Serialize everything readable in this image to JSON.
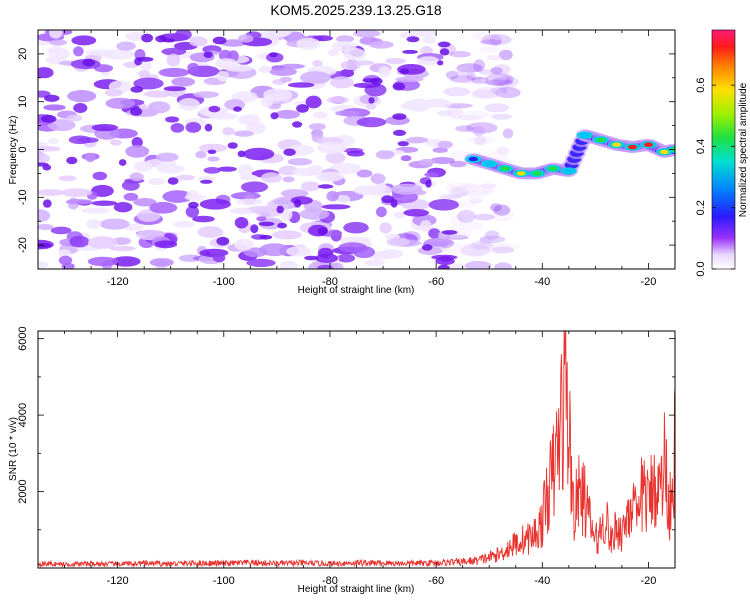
{
  "title": "KOM5.2025.239.13.25.G18",
  "colors": {
    "line": "#e8332f",
    "frame": "#000000",
    "spectrogram_base": "#8a2be2"
  },
  "chart_data": [
    {
      "type": "heatmap",
      "title": "KOM5.2025.239.13.25.G18",
      "xlabel": "Height of straight line (km)",
      "ylabel": "Frequency (Hz)",
      "xlim": [
        -135,
        -15
      ],
      "ylim": [
        -25,
        25
      ],
      "xticks": [
        -120,
        -100,
        -80,
        -60,
        -40,
        -20
      ],
      "xtick_labels": [
        "-120",
        "-100",
        "-80",
        "-60",
        "-40",
        "-20"
      ],
      "yticks": [
        -20,
        -10,
        0,
        10,
        20
      ],
      "ytick_labels": [
        "-20",
        "-10",
        "0",
        "10",
        "20"
      ],
      "noise_region_x": [
        -135,
        -50
      ],
      "signal_ridge": {
        "x": [
          -53,
          -50,
          -47,
          -44,
          -41,
          -38,
          -35,
          -32,
          -29,
          -26,
          -23,
          -20,
          -17,
          -15
        ],
        "frequency": [
          -2,
          -3,
          -4,
          -5,
          -5,
          -4,
          -4.5,
          3,
          2,
          1,
          0.5,
          1,
          -0.5,
          0
        ],
        "amplitude": [
          0.15,
          0.35,
          0.5,
          0.6,
          0.55,
          0.5,
          0.4,
          0.45,
          0.55,
          0.7,
          0.75,
          0.8,
          0.6,
          0.5
        ]
      },
      "colorbar": {
        "label": "Normalized spectral amplitude",
        "range": [
          0,
          0.78
        ],
        "ticks": [
          0.0,
          0.2,
          0.4,
          0.6
        ],
        "tick_labels": [
          "0.0",
          "0.2",
          "0.4",
          "0.6"
        ]
      }
    },
    {
      "type": "line",
      "xlabel": "Height of straight line (km)",
      "ylabel": "SNR (10 * v/v)",
      "xlim": [
        -135,
        -15
      ],
      "ylim": [
        0,
        6200
      ],
      "xticks": [
        -120,
        -100,
        -80,
        -60,
        -40,
        -20
      ],
      "xtick_labels": [
        "-120",
        "-100",
        "-80",
        "-60",
        "-40",
        "-20"
      ],
      "yticks": [
        2000,
        4000,
        6000
      ],
      "ytick_labels": [
        "2000",
        "4000",
        "6000"
      ],
      "series": [
        {
          "name": "SNR",
          "x": [
            -135,
            -130,
            -125,
            -120,
            -115,
            -110,
            -105,
            -100,
            -95,
            -90,
            -85,
            -80,
            -75,
            -70,
            -65,
            -60,
            -55,
            -52,
            -50,
            -48,
            -46,
            -44,
            -42,
            -41,
            -40,
            -39,
            -38,
            -37,
            -36,
            -35.5,
            -35,
            -34.5,
            -34,
            -33,
            -32,
            -31,
            -30,
            -29,
            -28,
            -27,
            -26,
            -25,
            -24,
            -23,
            -22,
            -21,
            -20,
            -19,
            -18,
            -17,
            -16,
            -15
          ],
          "y": [
            150,
            120,
            140,
            130,
            150,
            140,
            160,
            150,
            170,
            150,
            160,
            140,
            170,
            160,
            150,
            170,
            200,
            250,
            350,
            450,
            700,
            900,
            1000,
            1200,
            1500,
            2500,
            3000,
            4000,
            5500,
            6200,
            4500,
            3000,
            1800,
            2500,
            2200,
            1500,
            900,
            1200,
            1700,
            800,
            1400,
            1100,
            1800,
            2200,
            1300,
            2800,
            2000,
            3000,
            2400,
            3500,
            2000,
            3900
          ]
        }
      ]
    }
  ]
}
